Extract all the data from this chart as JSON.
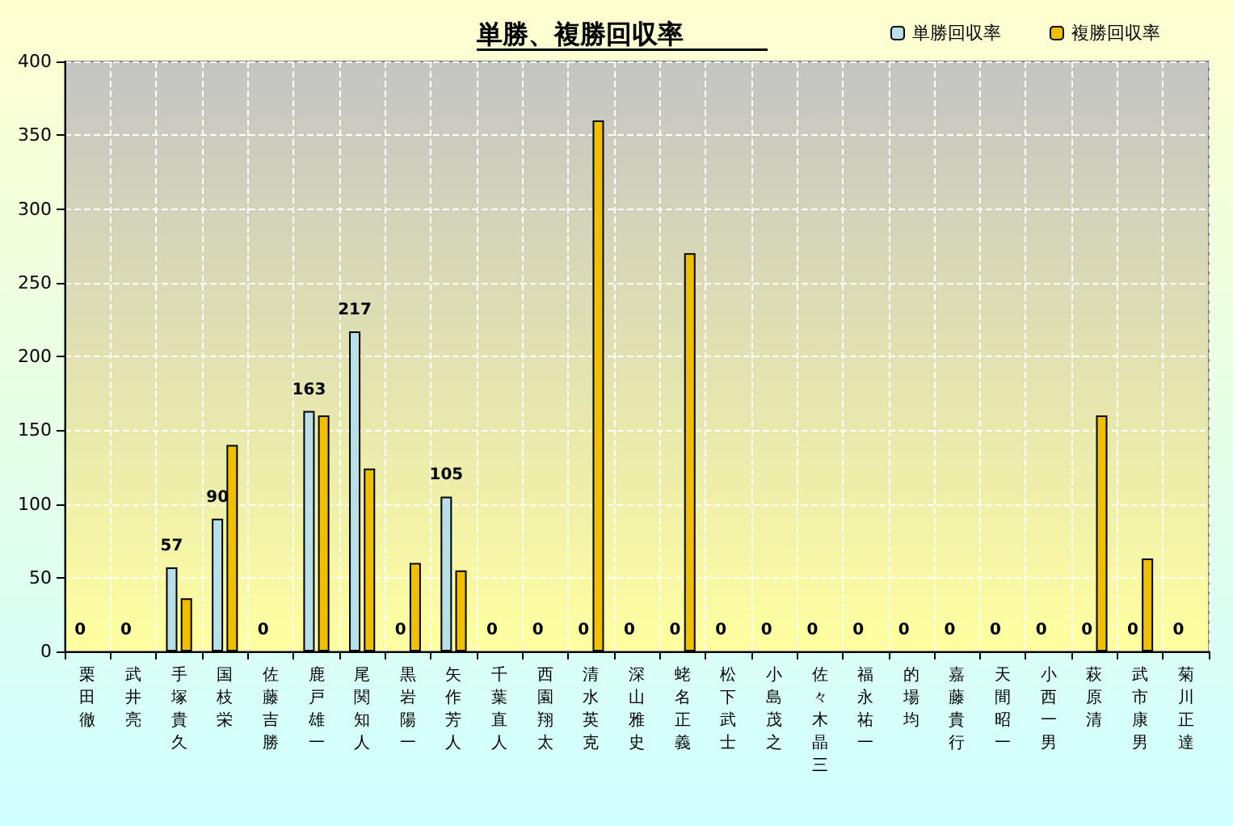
{
  "chart_data": {
    "type": "bar",
    "title": "単勝、複勝回収率",
    "categories": [
      "栗田徹",
      "武井亮",
      "手塚貴久",
      "国枝栄",
      "佐藤吉勝",
      "鹿戸雄一",
      "尾関知人",
      "黒岩陽一",
      "矢作芳人",
      "千葉直人",
      "西園翔太",
      "清水英克",
      "深山雅史",
      "蛯名正義",
      "松下武士",
      "小島茂之",
      "佐々木晶三",
      "福永祐一",
      "的場均",
      "嘉藤貴行",
      "天間昭一",
      "小西一男",
      "萩原清",
      "武市康男",
      "菊川正達"
    ],
    "series": [
      {
        "name": "単勝回収率",
        "color": "#b8e0e8",
        "values": [
          0,
          0,
          57,
          90,
          0,
          163,
          217,
          0,
          105,
          0,
          0,
          0,
          0,
          0,
          0,
          0,
          0,
          0,
          0,
          0,
          0,
          0,
          0,
          0,
          0
        ],
        "value_labels": [
          "0",
          "0",
          "57",
          "90",
          "0",
          "163",
          "217",
          "0",
          "105",
          "0",
          "0",
          "0",
          "0",
          "0",
          "0",
          "0",
          "0",
          "0",
          "0",
          "0",
          "0",
          "0",
          "0",
          "0",
          "0"
        ]
      },
      {
        "name": "複勝回収率",
        "color": "#f0c000",
        "values": [
          0,
          0,
          36,
          140,
          0,
          160,
          124,
          60,
          55,
          0,
          0,
          360,
          0,
          270,
          0,
          0,
          0,
          0,
          0,
          0,
          0,
          0,
          160,
          63,
          0
        ]
      }
    ],
    "ylim": [
      0,
      400
    ],
    "yticks": [
      0,
      50,
      100,
      150,
      200,
      250,
      300,
      350,
      400
    ],
    "grid": true,
    "legend": "top right"
  }
}
